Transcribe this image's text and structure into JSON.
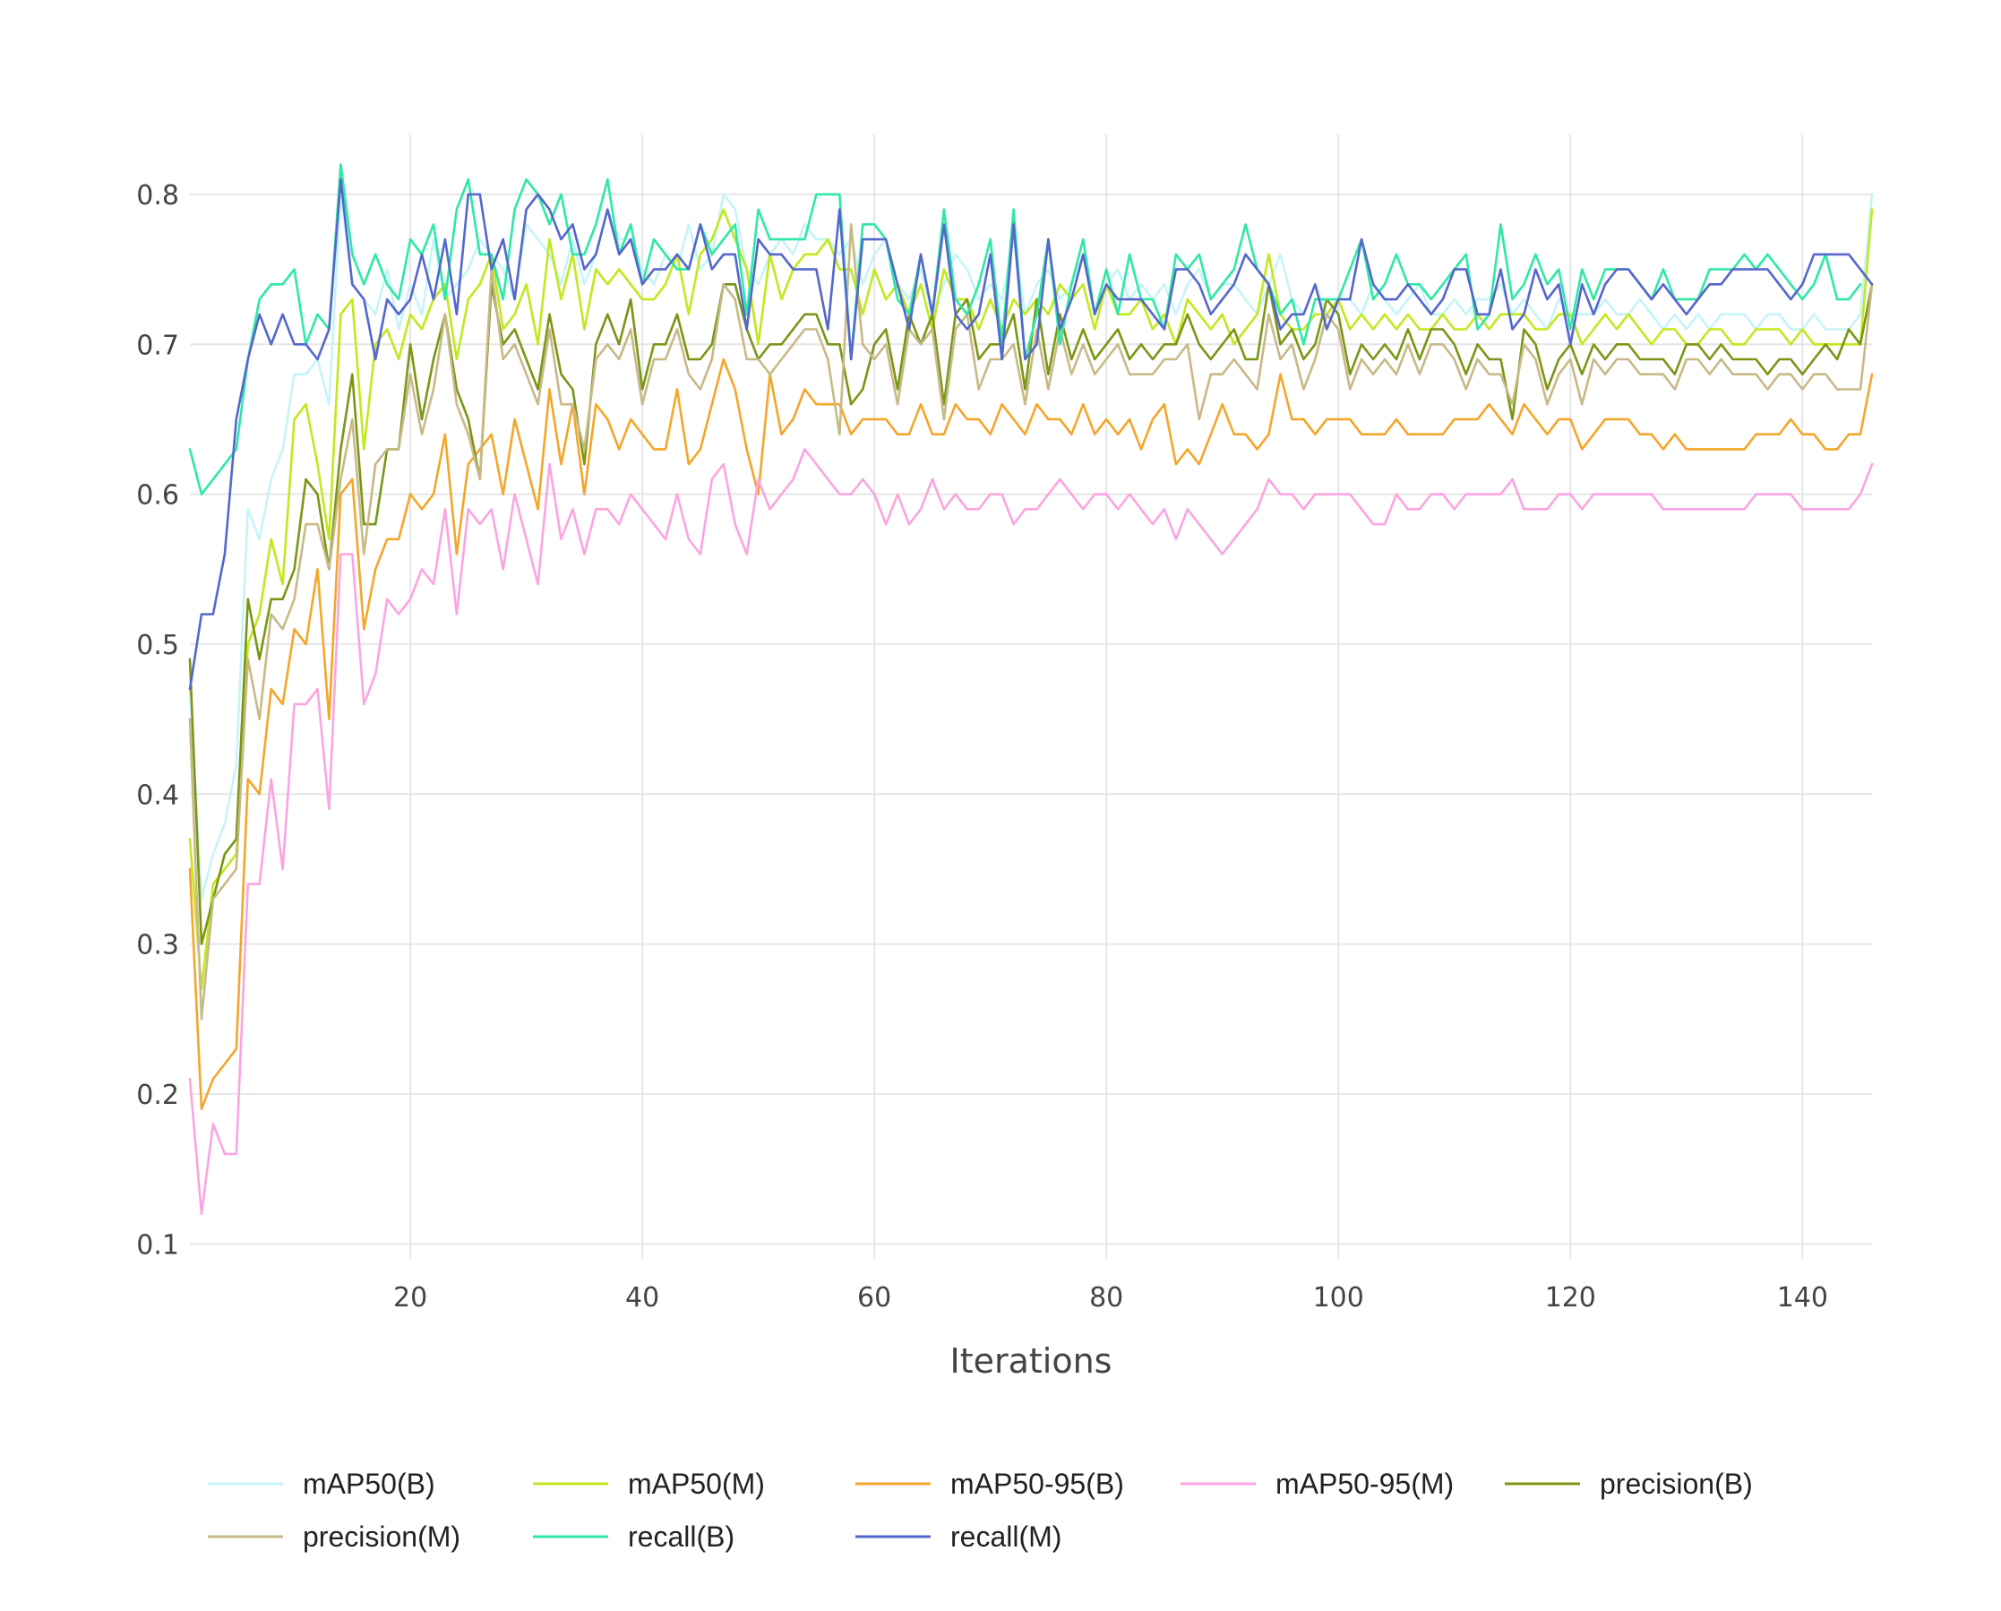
{
  "chart_data": {
    "type": "line",
    "title": "",
    "xlabel": "Iterations",
    "ylabel": "",
    "xlim": [
      1,
      146
    ],
    "ylim": [
      0.09,
      0.84
    ],
    "x_ticks": [
      20,
      40,
      60,
      80,
      100,
      120,
      140
    ],
    "y_ticks": [
      0.1,
      0.2,
      0.3,
      0.4,
      0.5,
      0.6,
      0.7,
      0.8
    ],
    "grid": true,
    "legend_position": "bottom",
    "x_start": 1,
    "x_step": 1,
    "series": [
      {
        "name": "mAP50(B)",
        "color": "#c6f4f8",
        "values": [
          0.47,
          0.33,
          0.36,
          0.38,
          0.42,
          0.59,
          0.57,
          0.61,
          0.63,
          0.68,
          0.68,
          0.69,
          0.66,
          0.8,
          0.74,
          0.73,
          0.72,
          0.75,
          0.71,
          0.74,
          0.72,
          0.77,
          0.73,
          0.74,
          0.75,
          0.77,
          0.76,
          0.75,
          0.73,
          0.78,
          0.77,
          0.76,
          0.74,
          0.77,
          0.74,
          0.76,
          0.79,
          0.77,
          0.77,
          0.75,
          0.74,
          0.76,
          0.75,
          0.78,
          0.75,
          0.76,
          0.8,
          0.79,
          0.75,
          0.74,
          0.76,
          0.77,
          0.76,
          0.78,
          0.77,
          0.77,
          0.76,
          0.77,
          0.74,
          0.76,
          0.77,
          0.74,
          0.73,
          0.75,
          0.72,
          0.74,
          0.76,
          0.75,
          0.73,
          0.74,
          0.73,
          0.77,
          0.72,
          0.74,
          0.75,
          0.73,
          0.74,
          0.76,
          0.72,
          0.74,
          0.75,
          0.73,
          0.74,
          0.73,
          0.74,
          0.72,
          0.74,
          0.75,
          0.73,
          0.74,
          0.74,
          0.73,
          0.72,
          0.74,
          0.76,
          0.73,
          0.72,
          0.74,
          0.72,
          0.73,
          0.73,
          0.72,
          0.74,
          0.73,
          0.72,
          0.73,
          0.74,
          0.72,
          0.72,
          0.73,
          0.72,
          0.73,
          0.73,
          0.74,
          0.72,
          0.73,
          0.72,
          0.71,
          0.73,
          0.72,
          0.72,
          0.72,
          0.73,
          0.72,
          0.72,
          0.73,
          0.72,
          0.71,
          0.72,
          0.71,
          0.72,
          0.71,
          0.72,
          0.72,
          0.72,
          0.71,
          0.72,
          0.72,
          0.71,
          0.71,
          0.72,
          0.71,
          0.71,
          0.71,
          0.72,
          0.8
        ]
      },
      {
        "name": "mAP50(M)",
        "color": "#c2e81e",
        "values": [
          0.37,
          0.27,
          0.34,
          0.35,
          0.36,
          0.5,
          0.52,
          0.57,
          0.54,
          0.65,
          0.66,
          0.62,
          0.57,
          0.72,
          0.73,
          0.63,
          0.7,
          0.71,
          0.69,
          0.72,
          0.71,
          0.73,
          0.74,
          0.69,
          0.73,
          0.74,
          0.76,
          0.71,
          0.72,
          0.74,
          0.7,
          0.77,
          0.73,
          0.76,
          0.71,
          0.75,
          0.74,
          0.75,
          0.74,
          0.73,
          0.73,
          0.74,
          0.76,
          0.72,
          0.76,
          0.77,
          0.79,
          0.77,
          0.75,
          0.7,
          0.76,
          0.73,
          0.75,
          0.76,
          0.76,
          0.77,
          0.75,
          0.75,
          0.72,
          0.75,
          0.73,
          0.74,
          0.72,
          0.74,
          0.71,
          0.75,
          0.73,
          0.73,
          0.71,
          0.73,
          0.71,
          0.73,
          0.72,
          0.73,
          0.72,
          0.74,
          0.73,
          0.74,
          0.71,
          0.74,
          0.72,
          0.72,
          0.73,
          0.71,
          0.72,
          0.7,
          0.73,
          0.72,
          0.71,
          0.72,
          0.7,
          0.71,
          0.72,
          0.76,
          0.72,
          0.71,
          0.71,
          0.72,
          0.72,
          0.73,
          0.71,
          0.72,
          0.71,
          0.72,
          0.71,
          0.72,
          0.71,
          0.71,
          0.72,
          0.71,
          0.71,
          0.72,
          0.71,
          0.72,
          0.72,
          0.72,
          0.71,
          0.71,
          0.72,
          0.72,
          0.7,
          0.71,
          0.72,
          0.71,
          0.72,
          0.71,
          0.7,
          0.71,
          0.71,
          0.7,
          0.7,
          0.71,
          0.71,
          0.7,
          0.7,
          0.71,
          0.71,
          0.71,
          0.7,
          0.71,
          0.7,
          0.7,
          0.7,
          0.7,
          0.7,
          0.79
        ]
      },
      {
        "name": "mAP50-95(B)",
        "color": "#f4a62a",
        "values": [
          0.35,
          0.19,
          0.21,
          0.22,
          0.23,
          0.41,
          0.4,
          0.47,
          0.46,
          0.51,
          0.5,
          0.55,
          0.45,
          0.6,
          0.61,
          0.51,
          0.55,
          0.57,
          0.57,
          0.6,
          0.59,
          0.6,
          0.64,
          0.56,
          0.62,
          0.63,
          0.64,
          0.6,
          0.65,
          0.62,
          0.59,
          0.67,
          0.62,
          0.66,
          0.6,
          0.66,
          0.65,
          0.63,
          0.65,
          0.64,
          0.63,
          0.63,
          0.67,
          0.62,
          0.63,
          0.66,
          0.69,
          0.67,
          0.63,
          0.6,
          0.68,
          0.64,
          0.65,
          0.67,
          0.66,
          0.66,
          0.66,
          0.64,
          0.65,
          0.65,
          0.65,
          0.64,
          0.64,
          0.66,
          0.64,
          0.64,
          0.66,
          0.65,
          0.65,
          0.64,
          0.66,
          0.65,
          0.64,
          0.66,
          0.65,
          0.65,
          0.64,
          0.66,
          0.64,
          0.65,
          0.64,
          0.65,
          0.63,
          0.65,
          0.66,
          0.62,
          0.63,
          0.62,
          0.64,
          0.66,
          0.64,
          0.64,
          0.63,
          0.64,
          0.68,
          0.65,
          0.65,
          0.64,
          0.65,
          0.65,
          0.65,
          0.64,
          0.64,
          0.64,
          0.65,
          0.64,
          0.64,
          0.64,
          0.64,
          0.65,
          0.65,
          0.65,
          0.66,
          0.65,
          0.64,
          0.66,
          0.65,
          0.64,
          0.65,
          0.65,
          0.63,
          0.64,
          0.65,
          0.65,
          0.65,
          0.64,
          0.64,
          0.63,
          0.64,
          0.63,
          0.63,
          0.63,
          0.63,
          0.63,
          0.63,
          0.64,
          0.64,
          0.64,
          0.65,
          0.64,
          0.64,
          0.63,
          0.63,
          0.64,
          0.64,
          0.68
        ]
      },
      {
        "name": "mAP50-95(M)",
        "color": "#fba5e0",
        "values": [
          0.21,
          0.12,
          0.18,
          0.16,
          0.16,
          0.34,
          0.34,
          0.41,
          0.35,
          0.46,
          0.46,
          0.47,
          0.39,
          0.56,
          0.56,
          0.46,
          0.48,
          0.53,
          0.52,
          0.53,
          0.55,
          0.54,
          0.59,
          0.52,
          0.59,
          0.58,
          0.59,
          0.55,
          0.6,
          0.57,
          0.54,
          0.62,
          0.57,
          0.59,
          0.56,
          0.59,
          0.59,
          0.58,
          0.6,
          0.59,
          0.58,
          0.57,
          0.6,
          0.57,
          0.56,
          0.61,
          0.62,
          0.58,
          0.56,
          0.61,
          0.59,
          0.6,
          0.61,
          0.63,
          0.62,
          0.61,
          0.6,
          0.6,
          0.61,
          0.6,
          0.58,
          0.6,
          0.58,
          0.59,
          0.61,
          0.59,
          0.6,
          0.59,
          0.59,
          0.6,
          0.6,
          0.58,
          0.59,
          0.59,
          0.6,
          0.61,
          0.6,
          0.59,
          0.6,
          0.6,
          0.59,
          0.6,
          0.59,
          0.58,
          0.59,
          0.57,
          0.59,
          0.58,
          0.57,
          0.56,
          0.57,
          0.58,
          0.59,
          0.61,
          0.6,
          0.6,
          0.59,
          0.6,
          0.6,
          0.6,
          0.6,
          0.59,
          0.58,
          0.58,
          0.6,
          0.59,
          0.59,
          0.6,
          0.6,
          0.59,
          0.6,
          0.6,
          0.6,
          0.6,
          0.61,
          0.59,
          0.59,
          0.59,
          0.6,
          0.6,
          0.59,
          0.6,
          0.6,
          0.6,
          0.6,
          0.6,
          0.6,
          0.59,
          0.59,
          0.59,
          0.59,
          0.59,
          0.59,
          0.59,
          0.59,
          0.6,
          0.6,
          0.6,
          0.6,
          0.59,
          0.59,
          0.59,
          0.59,
          0.59,
          0.6,
          0.62
        ]
      },
      {
        "name": "precision(B)",
        "color": "#7a9614",
        "values": [
          0.49,
          0.3,
          0.33,
          0.36,
          0.37,
          0.53,
          0.49,
          0.53,
          0.53,
          0.55,
          0.61,
          0.6,
          0.55,
          0.63,
          0.68,
          0.58,
          0.58,
          0.63,
          0.63,
          0.7,
          0.65,
          0.69,
          0.72,
          0.67,
          0.65,
          0.61,
          0.74,
          0.7,
          0.71,
          0.69,
          0.67,
          0.72,
          0.68,
          0.67,
          0.62,
          0.7,
          0.72,
          0.7,
          0.73,
          0.67,
          0.7,
          0.7,
          0.72,
          0.69,
          0.69,
          0.7,
          0.74,
          0.74,
          0.71,
          0.69,
          0.7,
          0.7,
          0.71,
          0.72,
          0.72,
          0.7,
          0.7,
          0.66,
          0.67,
          0.7,
          0.71,
          0.67,
          0.72,
          0.7,
          0.72,
          0.66,
          0.72,
          0.73,
          0.69,
          0.7,
          0.7,
          0.72,
          0.67,
          0.73,
          0.68,
          0.72,
          0.69,
          0.71,
          0.69,
          0.7,
          0.71,
          0.69,
          0.7,
          0.69,
          0.7,
          0.7,
          0.72,
          0.7,
          0.69,
          0.7,
          0.71,
          0.69,
          0.69,
          0.74,
          0.7,
          0.71,
          0.69,
          0.7,
          0.73,
          0.72,
          0.68,
          0.7,
          0.69,
          0.7,
          0.69,
          0.71,
          0.69,
          0.71,
          0.71,
          0.7,
          0.68,
          0.7,
          0.69,
          0.69,
          0.65,
          0.71,
          0.7,
          0.67,
          0.69,
          0.7,
          0.68,
          0.7,
          0.69,
          0.7,
          0.7,
          0.69,
          0.69,
          0.69,
          0.68,
          0.7,
          0.7,
          0.69,
          0.7,
          0.69,
          0.69,
          0.69,
          0.68,
          0.69,
          0.69,
          0.68,
          0.69,
          0.7,
          0.69,
          0.71,
          0.7,
          0.74
        ]
      },
      {
        "name": "precision(M)",
        "color": "#c8b987",
        "values": [
          0.45,
          0.25,
          0.33,
          0.34,
          0.35,
          0.49,
          0.45,
          0.52,
          0.51,
          0.53,
          0.58,
          0.58,
          0.55,
          0.61,
          0.65,
          0.56,
          0.62,
          0.63,
          0.63,
          0.68,
          0.64,
          0.67,
          0.72,
          0.66,
          0.64,
          0.61,
          0.75,
          0.69,
          0.7,
          0.68,
          0.66,
          0.71,
          0.66,
          0.66,
          0.63,
          0.69,
          0.7,
          0.69,
          0.71,
          0.66,
          0.69,
          0.69,
          0.71,
          0.68,
          0.67,
          0.69,
          0.74,
          0.73,
          0.69,
          0.69,
          0.68,
          0.69,
          0.7,
          0.71,
          0.71,
          0.69,
          0.64,
          0.78,
          0.7,
          0.69,
          0.7,
          0.66,
          0.71,
          0.7,
          0.71,
          0.65,
          0.71,
          0.72,
          0.67,
          0.69,
          0.69,
          0.7,
          0.66,
          0.71,
          0.67,
          0.71,
          0.68,
          0.7,
          0.68,
          0.69,
          0.7,
          0.68,
          0.68,
          0.68,
          0.69,
          0.69,
          0.7,
          0.65,
          0.68,
          0.68,
          0.69,
          0.68,
          0.67,
          0.72,
          0.69,
          0.7,
          0.67,
          0.69,
          0.72,
          0.71,
          0.67,
          0.69,
          0.68,
          0.69,
          0.68,
          0.7,
          0.68,
          0.7,
          0.7,
          0.69,
          0.67,
          0.69,
          0.68,
          0.68,
          0.66,
          0.7,
          0.69,
          0.66,
          0.68,
          0.69,
          0.66,
          0.69,
          0.68,
          0.69,
          0.69,
          0.68,
          0.68,
          0.68,
          0.67,
          0.69,
          0.69,
          0.68,
          0.69,
          0.68,
          0.68,
          0.68,
          0.67,
          0.68,
          0.68,
          0.67,
          0.68,
          0.68,
          0.67,
          0.67,
          0.67,
          0.74
        ]
      },
      {
        "name": "recall(B)",
        "color": "#2ee8a6",
        "values": [
          0.63,
          0.6,
          0.61,
          0.62,
          0.63,
          0.69,
          0.73,
          0.74,
          0.74,
          0.75,
          0.7,
          0.72,
          0.71,
          0.82,
          0.76,
          0.74,
          0.76,
          0.74,
          0.73,
          0.77,
          0.76,
          0.78,
          0.73,
          0.79,
          0.81,
          0.76,
          0.76,
          0.73,
          0.79,
          0.81,
          0.8,
          0.78,
          0.8,
          0.76,
          0.76,
          0.78,
          0.81,
          0.76,
          0.78,
          0.74,
          0.77,
          0.76,
          0.75,
          0.75,
          0.78,
          0.76,
          0.77,
          0.78,
          0.72,
          0.79,
          0.77,
          0.77,
          0.77,
          0.77,
          0.8,
          0.8,
          0.8,
          0.69,
          0.78,
          0.78,
          0.77,
          0.73,
          0.72,
          0.76,
          0.72,
          0.79,
          0.73,
          0.72,
          0.74,
          0.77,
          0.7,
          0.79,
          0.69,
          0.72,
          0.77,
          0.7,
          0.74,
          0.77,
          0.72,
          0.75,
          0.72,
          0.76,
          0.73,
          0.73,
          0.71,
          0.76,
          0.75,
          0.76,
          0.73,
          0.74,
          0.75,
          0.78,
          0.75,
          0.74,
          0.72,
          0.73,
          0.7,
          0.73,
          0.73,
          0.73,
          0.75,
          0.77,
          0.73,
          0.74,
          0.76,
          0.74,
          0.74,
          0.73,
          0.74,
          0.75,
          0.76,
          0.71,
          0.72,
          0.78,
          0.73,
          0.74,
          0.76,
          0.74,
          0.75,
          0.71,
          0.75,
          0.73,
          0.75,
          0.75,
          0.75,
          0.74,
          0.73,
          0.75,
          0.73,
          0.73,
          0.73,
          0.75,
          0.75,
          0.75,
          0.76,
          0.75,
          0.76,
          0.75,
          0.74,
          0.73,
          0.74,
          0.76,
          0.73,
          0.73,
          0.74
        ]
      },
      {
        "name": "recall(M)",
        "color": "#5566cc",
        "values": [
          0.47,
          0.52,
          0.52,
          0.56,
          0.65,
          0.69,
          0.72,
          0.7,
          0.72,
          0.7,
          0.7,
          0.69,
          0.71,
          0.81,
          0.74,
          0.73,
          0.69,
          0.73,
          0.72,
          0.73,
          0.76,
          0.73,
          0.77,
          0.72,
          0.8,
          0.8,
          0.75,
          0.77,
          0.73,
          0.79,
          0.8,
          0.79,
          0.77,
          0.78,
          0.75,
          0.76,
          0.79,
          0.76,
          0.77,
          0.74,
          0.75,
          0.75,
          0.76,
          0.75,
          0.78,
          0.75,
          0.76,
          0.76,
          0.71,
          0.77,
          0.76,
          0.76,
          0.75,
          0.75,
          0.75,
          0.71,
          0.79,
          0.69,
          0.77,
          0.77,
          0.77,
          0.74,
          0.71,
          0.76,
          0.72,
          0.78,
          0.72,
          0.71,
          0.72,
          0.76,
          0.69,
          0.78,
          0.69,
          0.7,
          0.77,
          0.71,
          0.73,
          0.76,
          0.72,
          0.74,
          0.73,
          0.73,
          0.73,
          0.72,
          0.71,
          0.75,
          0.75,
          0.74,
          0.72,
          0.73,
          0.74,
          0.76,
          0.75,
          0.74,
          0.71,
          0.72,
          0.72,
          0.74,
          0.71,
          0.73,
          0.73,
          0.77,
          0.74,
          0.73,
          0.73,
          0.74,
          0.73,
          0.72,
          0.73,
          0.75,
          0.75,
          0.72,
          0.72,
          0.75,
          0.71,
          0.72,
          0.75,
          0.73,
          0.74,
          0.7,
          0.74,
          0.72,
          0.74,
          0.75,
          0.75,
          0.74,
          0.73,
          0.74,
          0.73,
          0.72,
          0.73,
          0.74,
          0.74,
          0.75,
          0.75,
          0.75,
          0.75,
          0.74,
          0.73,
          0.74,
          0.76,
          0.76,
          0.76,
          0.76,
          0.75,
          0.74
        ]
      }
    ]
  }
}
